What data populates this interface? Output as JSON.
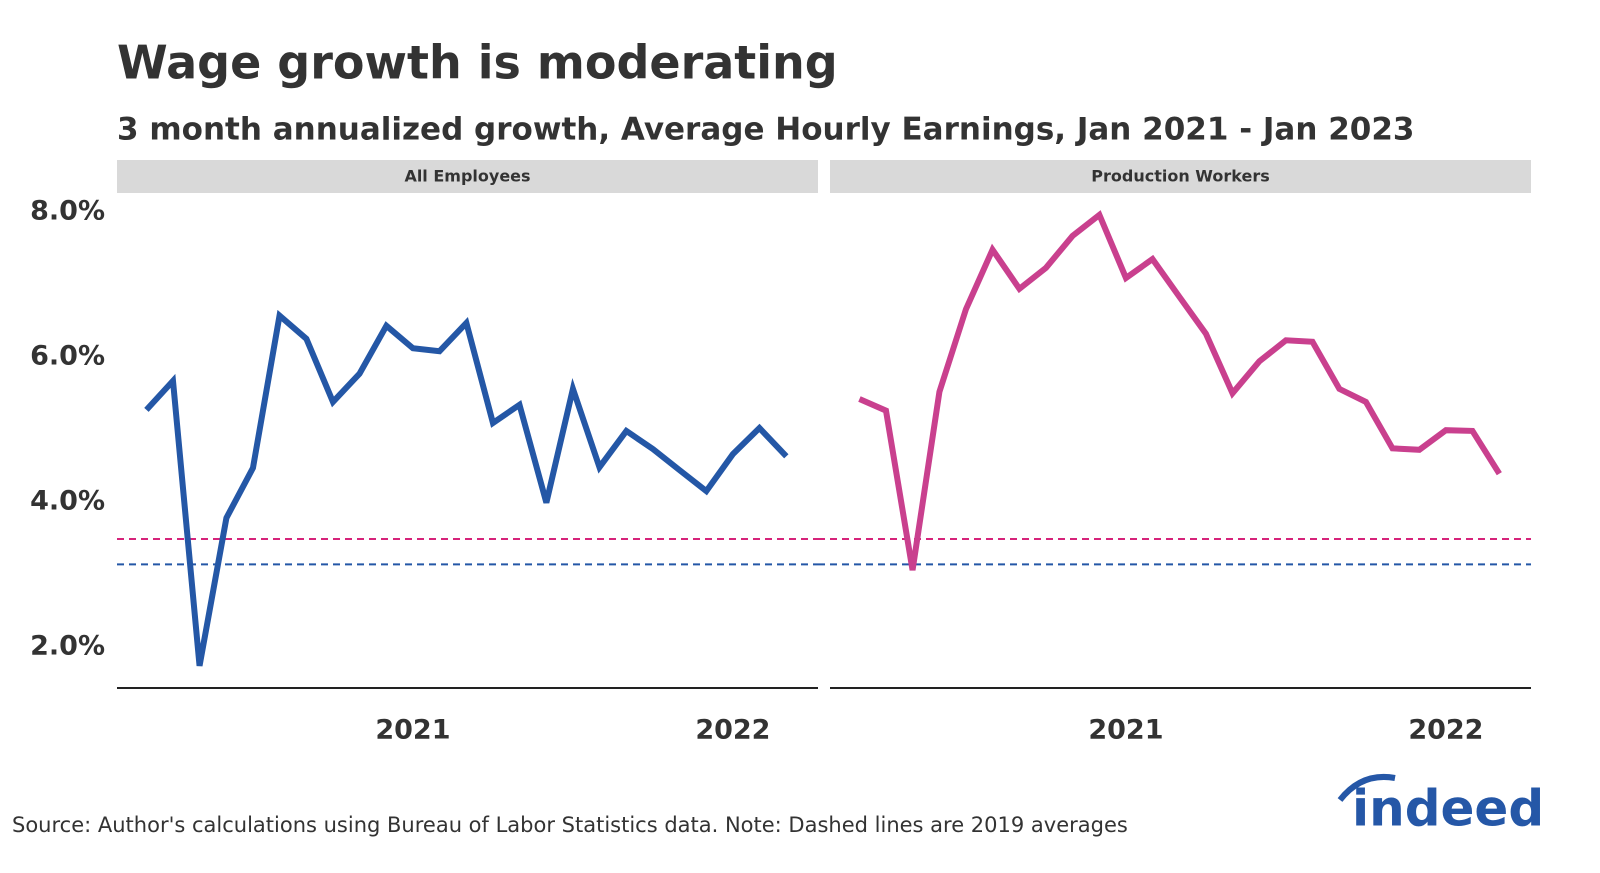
{
  "title": "Wage growth is moderating",
  "subtitle": "3 month annualized growth, Average Hourly Earnings, Jan 2021 - Jan 2023",
  "source": "Source: Author's calculations using Bureau of Labor Statistics data. Note: Dashed lines are 2019 averages",
  "logo": "indeed",
  "chart_data": [
    {
      "type": "line",
      "title": "All Employees",
      "x": [
        2020.167,
        2020.25,
        2020.333,
        2020.417,
        2020.5,
        2020.583,
        2020.667,
        2020.75,
        2020.833,
        2020.917,
        2021,
        2021.083,
        2021.167,
        2021.25,
        2021.333,
        2021.417,
        2021.5,
        2021.583,
        2021.667,
        2021.75,
        2021.833,
        2021.917,
        2022,
        2022.083,
        2022.167
      ],
      "series": [
        {
          "color": "#2457a6",
          "values": [
            5.27,
            5.67,
            1.74,
            3.78,
            4.47,
            6.57,
            6.25,
            5.38,
            5.77,
            6.43,
            6.12,
            6.08,
            6.47,
            5.09,
            5.34,
            3.99,
            5.56,
            4.48,
            4.98,
            4.73,
            4.44,
            4.15,
            4.66,
            5.02,
            4.63
          ]
        }
      ],
      "xlim": [
        2020.075,
        2022.266
      ],
      "xticks": [
        2021,
        2022
      ],
      "ylim": [
        1.434,
        8.262
      ],
      "yticks": [
        {
          "value": 2,
          "label": "2.0%"
        },
        {
          "value": 4,
          "label": "4.0%"
        },
        {
          "value": 6,
          "label": "6.0%"
        },
        {
          "value": 8,
          "label": "8.0%"
        }
      ],
      "reference_lines": [
        {
          "value": 3.49,
          "color": "#d6237a"
        },
        {
          "value": 3.14,
          "color": "#2457a6"
        }
      ]
    },
    {
      "type": "line",
      "title": "Production Workers",
      "x": [
        2020.167,
        2020.25,
        2020.333,
        2020.417,
        2020.5,
        2020.583,
        2020.667,
        2020.75,
        2020.833,
        2020.917,
        2021,
        2021.083,
        2021.167,
        2021.25,
        2021.333,
        2021.417,
        2021.5,
        2021.583,
        2021.667,
        2021.75,
        2021.833,
        2021.917,
        2022,
        2022.083,
        2022.167
      ],
      "series": [
        {
          "color": "#c9408e",
          "values": [
            5.42,
            5.26,
            3.06,
            5.52,
            6.66,
            7.48,
            6.94,
            7.23,
            7.67,
            7.96,
            7.09,
            7.35,
            6.83,
            6.32,
            5.5,
            5.94,
            6.23,
            6.21,
            5.56,
            5.38,
            4.74,
            4.72,
            4.99,
            4.98,
            4.39
          ]
        }
      ],
      "xlim": [
        2020.075,
        2022.266
      ],
      "xticks": [
        2021,
        2022
      ],
      "ylim": [
        1.434,
        8.262
      ],
      "reference_lines": [
        {
          "value": 3.49,
          "color": "#d6237a"
        },
        {
          "value": 3.14,
          "color": "#2457a6"
        }
      ]
    }
  ]
}
